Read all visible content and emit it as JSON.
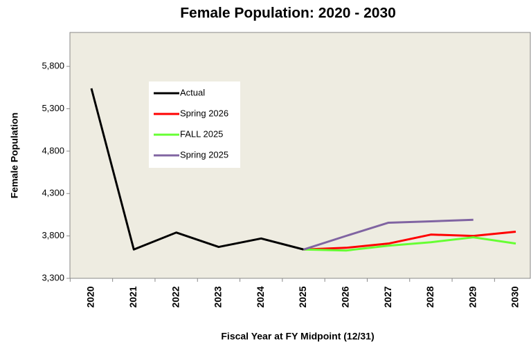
{
  "chart_data": {
    "type": "line",
    "title": "Female Population: 2020 - 2030",
    "x_label": "Fiscal Year at FY Midpoint (12/31)",
    "y_label": "Female Population",
    "categories": [
      "2020",
      "2021",
      "2022",
      "2023",
      "2024",
      "2025",
      "2026",
      "2027",
      "2028",
      "2029",
      "2030"
    ],
    "series": [
      {
        "name": "Actual",
        "color": "#000000",
        "values": [
          5540,
          3640,
          3840,
          3670,
          3770,
          3640,
          null,
          null,
          null,
          null,
          null
        ]
      },
      {
        "name": "Spring 2026",
        "color": "#ff0000",
        "values": [
          null,
          null,
          null,
          null,
          null,
          3640,
          3660,
          3710,
          3816,
          3800,
          3850
        ]
      },
      {
        "name": "FALL 2025",
        "color": "#66ff33",
        "values": [
          null,
          null,
          null,
          null,
          null,
          3640,
          3628,
          3685,
          3726,
          3784,
          3710
        ]
      },
      {
        "name": "Spring 2025",
        "color": "#8064a2",
        "values": [
          null,
          null,
          null,
          null,
          null,
          3640,
          3800,
          3956,
          3972,
          3990,
          null
        ]
      }
    ],
    "ylim": [
      3300,
      6200
    ],
    "yticks": [
      {
        "value": 3300,
        "label": "3,300"
      },
      {
        "value": 3800,
        "label": "3,800"
      },
      {
        "value": 4300,
        "label": "4,300"
      },
      {
        "value": 4800,
        "label": "4,800"
      },
      {
        "value": 5300,
        "label": "5,300"
      },
      {
        "value": 5800,
        "label": "5,800"
      }
    ],
    "grid": false,
    "legend": "upper-left"
  }
}
